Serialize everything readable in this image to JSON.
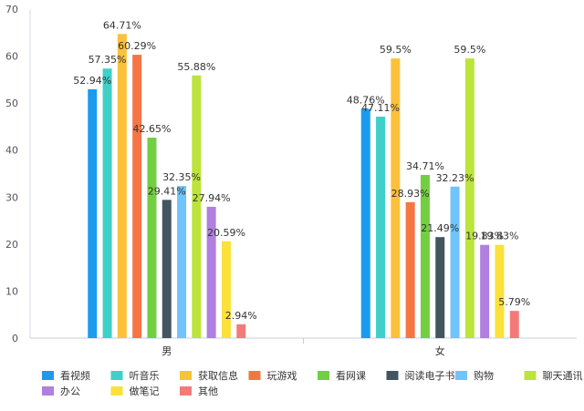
{
  "chart_data": {
    "type": "bar",
    "categories": [
      "男",
      "女"
    ],
    "ylim": [
      0,
      70
    ],
    "yticks": [
      0,
      10,
      20,
      30,
      40,
      50,
      60,
      70
    ],
    "grid": false,
    "legend_position": "bottom",
    "series": [
      {
        "name": "看视频",
        "color": "#1a9bf0",
        "values": [
          52.94,
          48.76
        ],
        "labels": [
          "52.94%",
          "48.76%"
        ]
      },
      {
        "name": "听音乐",
        "color": "#3fd0c9",
        "values": [
          57.35,
          47.11
        ],
        "labels": [
          "57.35%",
          "47.11%"
        ]
      },
      {
        "name": "获取信息",
        "color": "#fbc13a",
        "values": [
          64.71,
          59.5
        ],
        "labels": [
          "64.71%",
          "59.5%"
        ]
      },
      {
        "name": "玩游戏",
        "color": "#f67544",
        "values": [
          60.29,
          28.93
        ],
        "labels": [
          "60.29%",
          "28.93%"
        ]
      },
      {
        "name": "看网课",
        "color": "#72cf42",
        "values": [
          42.65,
          34.71
        ],
        "labels": [
          "42.65%",
          "34.71%"
        ]
      },
      {
        "name": "阅读电子书",
        "color": "#425561",
        "values": [
          29.41,
          21.49
        ],
        "labels": [
          "29.41%",
          "21.49%"
        ]
      },
      {
        "name": "购物",
        "color": "#6ec4fb",
        "values": [
          32.35,
          32.23
        ],
        "labels": [
          "32.35%",
          "32.23%"
        ]
      },
      {
        "name": "聊天通讯",
        "color": "#bce43a",
        "values": [
          55.88,
          59.5
        ],
        "labels": [
          "55.88%",
          "59.5%"
        ]
      },
      {
        "name": "办公",
        "color": "#b07fe0",
        "values": [
          27.94,
          19.83
        ],
        "labels": [
          "27.94%",
          "19.83%"
        ]
      },
      {
        "name": "做笔记",
        "color": "#fbe13a",
        "values": [
          20.59,
          19.83
        ],
        "labels": [
          "20.59%",
          "19.83%"
        ]
      },
      {
        "name": "其他",
        "color": "#f47a7a",
        "values": [
          2.94,
          5.79
        ],
        "labels": [
          "2.94%",
          "5.79%"
        ]
      }
    ]
  }
}
